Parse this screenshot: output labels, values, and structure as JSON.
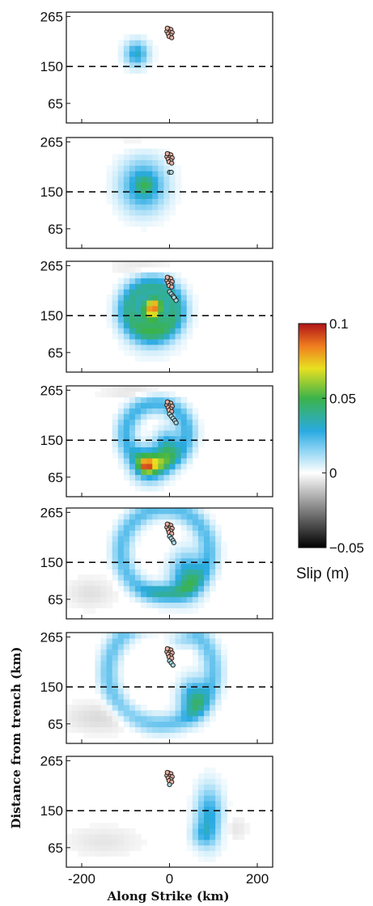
{
  "chart_data": {
    "type": "heatmap",
    "panel_count": 7,
    "xlabel": "Along Strike (km)",
    "ylabel": "Distance from trench (km)",
    "xlim": [
      -235,
      235
    ],
    "ylim": [
      20,
      275
    ],
    "xticks": [
      -200,
      0,
      200
    ],
    "xtick_labels": [
      "-200",
      "0",
      "200"
    ],
    "yticks": [
      265,
      150,
      65
    ],
    "ytick_labels": [
      "265",
      "150",
      "65"
    ],
    "dashed_line_y": 150,
    "colorbar": {
      "label": "Slip (m)",
      "min": -0.05,
      "max": 0.1,
      "ticks": [
        0.1,
        0.05,
        0,
        -0.05
      ],
      "tick_labels": [
        "0.1",
        "0.05",
        "0",
        "−0.05"
      ],
      "colormap": [
        {
          "value": -0.05,
          "color": "#000000"
        },
        {
          "value": -0.025,
          "color": "#7f7f7f"
        },
        {
          "value": 0,
          "color": "#ffffff"
        },
        {
          "value": 0.015,
          "color": "#8fd4f4"
        },
        {
          "value": 0.028,
          "color": "#2aaae2"
        },
        {
          "value": 0.05,
          "color": "#3bb34a"
        },
        {
          "value": 0.07,
          "color": "#e8e020"
        },
        {
          "value": 0.085,
          "color": "#ef7d1f"
        },
        {
          "value": 0.1,
          "color": "#b01418"
        }
      ]
    },
    "panels": [
      {
        "index": 1,
        "blobs": [
          {
            "type": "gauss",
            "x": -75,
            "y": 180,
            "sx": 18,
            "sy": 20,
            "amp": 0.032
          }
        ],
        "events": [
          {
            "x": -2,
            "y": 237,
            "color": "#e8b0a0"
          },
          {
            "x": 3,
            "y": 235,
            "color": "#e8b0a0"
          },
          {
            "x": -6,
            "y": 231,
            "color": "#e8b0a0"
          },
          {
            "x": 1,
            "y": 229,
            "color": "#e8b0a0"
          },
          {
            "x": 6,
            "y": 228,
            "color": "#e8b0a0"
          },
          {
            "x": -3,
            "y": 225,
            "color": "#e8b0a0"
          },
          {
            "x": 3,
            "y": 222,
            "color": "#e8b0a0"
          },
          {
            "x": -1,
            "y": 219,
            "color": "#e8b0a0"
          },
          {
            "x": 5,
            "y": 216,
            "color": "#e8b0a0"
          },
          {
            "x": -5,
            "y": 238,
            "color": "#e8b0a0"
          }
        ]
      },
      {
        "index": 2,
        "blobs": [
          {
            "type": "gauss",
            "x": -60,
            "y": 165,
            "sx": 35,
            "sy": 40,
            "amp": 0.035
          },
          {
            "type": "gauss",
            "x": -55,
            "y": 165,
            "sx": 15,
            "sy": 15,
            "amp": 0.015
          },
          {
            "type": "gauss",
            "x": -80,
            "y": 262,
            "sx": 30,
            "sy": 10,
            "amp": -0.004
          }
        ],
        "events": [
          {
            "x": -2,
            "y": 237,
            "color": "#e8b0a0"
          },
          {
            "x": 3,
            "y": 235,
            "color": "#e8b0a0"
          },
          {
            "x": -6,
            "y": 231,
            "color": "#e8b0a0"
          },
          {
            "x": 1,
            "y": 229,
            "color": "#e8b0a0"
          },
          {
            "x": 6,
            "y": 228,
            "color": "#e8b0a0"
          },
          {
            "x": -3,
            "y": 225,
            "color": "#e8b0a0"
          },
          {
            "x": 3,
            "y": 222,
            "color": "#e8b0a0"
          },
          {
            "x": -1,
            "y": 219,
            "color": "#e8b0a0"
          },
          {
            "x": 5,
            "y": 216,
            "color": "#e8b0a0"
          },
          {
            "x": -5,
            "y": 238,
            "color": "#e8b0a0"
          },
          {
            "x": 0,
            "y": 195,
            "color": "#a8d8e0"
          },
          {
            "x": 4,
            "y": 195,
            "color": "#a8d8e0"
          }
        ]
      },
      {
        "index": 3,
        "blobs": [
          {
            "type": "ring",
            "x": -40,
            "y": 165,
            "r": 55,
            "w": 25,
            "amp": 0.03
          },
          {
            "type": "gauss",
            "x": -40,
            "y": 150,
            "sx": 40,
            "sy": 45,
            "amp": 0.028
          },
          {
            "type": "gauss",
            "x": -40,
            "y": 165,
            "sx": 14,
            "sy": 16,
            "amp": 0.055
          },
          {
            "type": "gauss",
            "x": -30,
            "y": 178,
            "sx": 10,
            "sy": 10,
            "amp": 0.02
          },
          {
            "type": "gauss",
            "x": -60,
            "y": 262,
            "sx": 50,
            "sy": 8,
            "amp": -0.007
          }
        ],
        "events": [
          {
            "x": -2,
            "y": 237,
            "color": "#e8b0a0"
          },
          {
            "x": 3,
            "y": 235,
            "color": "#e8b0a0"
          },
          {
            "x": -6,
            "y": 231,
            "color": "#e8b0a0"
          },
          {
            "x": 1,
            "y": 229,
            "color": "#e8b0a0"
          },
          {
            "x": 6,
            "y": 228,
            "color": "#e8b0a0"
          },
          {
            "x": -3,
            "y": 225,
            "color": "#e8b0a0"
          },
          {
            "x": 3,
            "y": 222,
            "color": "#e8b0a0"
          },
          {
            "x": -1,
            "y": 219,
            "color": "#e8b0a0"
          },
          {
            "x": 5,
            "y": 216,
            "color": "#e8b0a0"
          },
          {
            "x": -5,
            "y": 238,
            "color": "#e8b0a0"
          },
          {
            "x": 0,
            "y": 205,
            "color": "#a8d8e0"
          },
          {
            "x": 4,
            "y": 200,
            "color": "#a8d8e0"
          },
          {
            "x": 8,
            "y": 195,
            "color": "#a8d8e0"
          },
          {
            "x": 12,
            "y": 190,
            "color": "#a8d8e0"
          },
          {
            "x": 15,
            "y": 185,
            "color": "#a8d8e0"
          },
          {
            "x": 10,
            "y": 192,
            "color": "#a8d8e0"
          }
        ]
      },
      {
        "index": 4,
        "blobs": [
          {
            "type": "ring",
            "x": -30,
            "y": 165,
            "r": 70,
            "w": 22,
            "amp": 0.025
          },
          {
            "type": "gauss",
            "x": -45,
            "y": 95,
            "sx": 25,
            "sy": 25,
            "amp": 0.05
          },
          {
            "type": "gauss",
            "x": -55,
            "y": 90,
            "sx": 10,
            "sy": 10,
            "amp": 0.03
          },
          {
            "type": "gauss",
            "x": -5,
            "y": 135,
            "sx": 18,
            "sy": 25,
            "amp": 0.035
          },
          {
            "type": "gauss",
            "x": -70,
            "y": 262,
            "sx": 60,
            "sy": 8,
            "amp": -0.007
          }
        ],
        "events": [
          {
            "x": -2,
            "y": 237,
            "color": "#e8b0a0"
          },
          {
            "x": 3,
            "y": 235,
            "color": "#e8b0a0"
          },
          {
            "x": -6,
            "y": 231,
            "color": "#e8b0a0"
          },
          {
            "x": 1,
            "y": 229,
            "color": "#e8b0a0"
          },
          {
            "x": 6,
            "y": 228,
            "color": "#e8b0a0"
          },
          {
            "x": -3,
            "y": 225,
            "color": "#e8b0a0"
          },
          {
            "x": 3,
            "y": 222,
            "color": "#e8b0a0"
          },
          {
            "x": -1,
            "y": 219,
            "color": "#e8b0a0"
          },
          {
            "x": 5,
            "y": 216,
            "color": "#e8b0a0"
          },
          {
            "x": -5,
            "y": 238,
            "color": "#e8b0a0"
          },
          {
            "x": 0,
            "y": 210,
            "color": "#a8d8e0"
          },
          {
            "x": 4,
            "y": 205,
            "color": "#a8d8e0"
          },
          {
            "x": 8,
            "y": 200,
            "color": "#a8d8e0"
          },
          {
            "x": 12,
            "y": 195,
            "color": "#a8d8e0"
          },
          {
            "x": 15,
            "y": 190,
            "color": "#a8d8e0"
          }
        ]
      },
      {
        "index": 5,
        "blobs": [
          {
            "type": "ring",
            "x": -10,
            "y": 175,
            "r": 100,
            "w": 22,
            "amp": 0.022
          },
          {
            "type": "gauss",
            "x": 40,
            "y": 120,
            "sx": 25,
            "sy": 35,
            "amp": 0.035
          },
          {
            "type": "gauss",
            "x": -20,
            "y": 85,
            "sx": 30,
            "sy": 12,
            "amp": 0.018
          },
          {
            "type": "gauss",
            "x": -180,
            "y": 80,
            "sx": 40,
            "sy": 25,
            "amp": -0.006
          }
        ],
        "events": [
          {
            "x": -2,
            "y": 237,
            "color": "#e8b0a0"
          },
          {
            "x": 3,
            "y": 235,
            "color": "#e8b0a0"
          },
          {
            "x": -6,
            "y": 231,
            "color": "#e8b0a0"
          },
          {
            "x": 1,
            "y": 229,
            "color": "#e8b0a0"
          },
          {
            "x": 6,
            "y": 228,
            "color": "#e8b0a0"
          },
          {
            "x": -3,
            "y": 225,
            "color": "#e8b0a0"
          },
          {
            "x": 3,
            "y": 222,
            "color": "#e8b0a0"
          },
          {
            "x": -1,
            "y": 219,
            "color": "#e8b0a0"
          },
          {
            "x": 5,
            "y": 216,
            "color": "#e8b0a0"
          },
          {
            "x": -5,
            "y": 238,
            "color": "#e8b0a0"
          },
          {
            "x": 0,
            "y": 210,
            "color": "#a8d8e0"
          },
          {
            "x": 4,
            "y": 205,
            "color": "#a8d8e0"
          },
          {
            "x": 8,
            "y": 200,
            "color": "#a8d8e0"
          },
          {
            "x": 10,
            "y": 195,
            "color": "#a8d8e0"
          }
        ]
      },
      {
        "index": 6,
        "blobs": [
          {
            "type": "ring",
            "x": -20,
            "y": 185,
            "r": 120,
            "w": 22,
            "amp": 0.02
          },
          {
            "type": "gauss",
            "x": 55,
            "y": 125,
            "sx": 22,
            "sy": 30,
            "amp": 0.035
          },
          {
            "type": "gauss",
            "x": -160,
            "y": 80,
            "sx": 60,
            "sy": 25,
            "amp": -0.007
          },
          {
            "type": "gauss",
            "x": 30,
            "y": 255,
            "sx": 20,
            "sy": 10,
            "amp": 0.01
          }
        ],
        "events": [
          {
            "x": -2,
            "y": 237,
            "color": "#e8b0a0"
          },
          {
            "x": 3,
            "y": 235,
            "color": "#e8b0a0"
          },
          {
            "x": -6,
            "y": 231,
            "color": "#e8b0a0"
          },
          {
            "x": 1,
            "y": 229,
            "color": "#e8b0a0"
          },
          {
            "x": 6,
            "y": 228,
            "color": "#e8b0a0"
          },
          {
            "x": -3,
            "y": 225,
            "color": "#e8b0a0"
          },
          {
            "x": 3,
            "y": 222,
            "color": "#e8b0a0"
          },
          {
            "x": -1,
            "y": 219,
            "color": "#e8b0a0"
          },
          {
            "x": 5,
            "y": 216,
            "color": "#e8b0a0"
          },
          {
            "x": -5,
            "y": 238,
            "color": "#e8b0a0"
          },
          {
            "x": 0,
            "y": 210,
            "color": "#a8d8e0"
          },
          {
            "x": 4,
            "y": 205,
            "color": "#a8d8e0"
          },
          {
            "x": 8,
            "y": 200,
            "color": "#a8d8e0"
          }
        ]
      },
      {
        "index": 7,
        "blobs": [
          {
            "type": "gauss",
            "x": 90,
            "y": 140,
            "sx": 20,
            "sy": 45,
            "amp": 0.03
          },
          {
            "type": "gauss",
            "x": 75,
            "y": 95,
            "sx": 18,
            "sy": 18,
            "amp": 0.015
          },
          {
            "type": "gauss",
            "x": -150,
            "y": 80,
            "sx": 60,
            "sy": 25,
            "amp": -0.005
          },
          {
            "type": "gauss",
            "x": 150,
            "y": 110,
            "sx": 20,
            "sy": 20,
            "amp": -0.005
          }
        ],
        "events": [
          {
            "x": -2,
            "y": 237,
            "color": "#e8b0a0"
          },
          {
            "x": 3,
            "y": 235,
            "color": "#e8b0a0"
          },
          {
            "x": -6,
            "y": 231,
            "color": "#e8b0a0"
          },
          {
            "x": 1,
            "y": 229,
            "color": "#e8b0a0"
          },
          {
            "x": 6,
            "y": 228,
            "color": "#e8b0a0"
          },
          {
            "x": -3,
            "y": 225,
            "color": "#e8b0a0"
          },
          {
            "x": 3,
            "y": 222,
            "color": "#e8b0a0"
          },
          {
            "x": -1,
            "y": 219,
            "color": "#e8b0a0"
          },
          {
            "x": 5,
            "y": 216,
            "color": "#e8b0a0"
          },
          {
            "x": -5,
            "y": 238,
            "color": "#e8b0a0"
          },
          {
            "x": 0,
            "y": 210,
            "color": "#a8d8e0"
          }
        ]
      }
    ]
  }
}
